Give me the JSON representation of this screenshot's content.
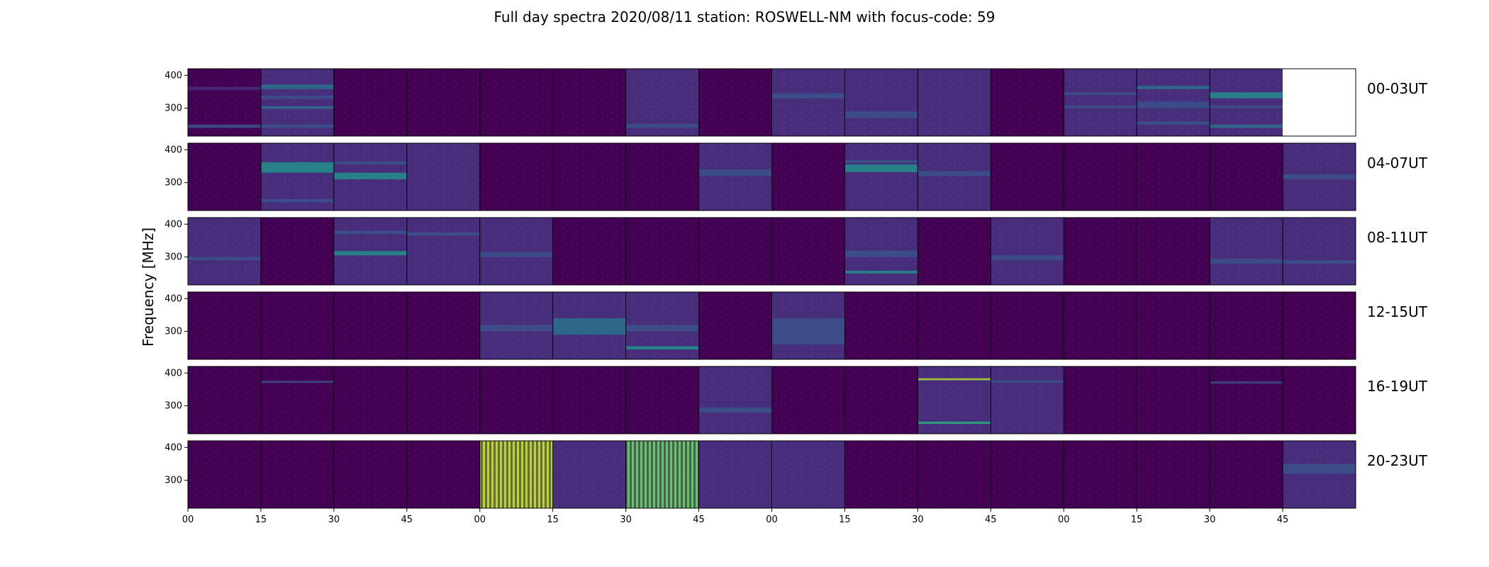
{
  "chart_data": {
    "type": "heatmap",
    "title": "Full day spectra 2020/08/11 station: ROSWELL-NM with focus-code: 59",
    "ylabel": "Frequency [MHz]",
    "yticks": [
      300,
      400
    ],
    "ylim": [
      215,
      420
    ],
    "xticks": [
      "00",
      "15",
      "30",
      "45",
      "00",
      "15",
      "30",
      "45",
      "00",
      "15",
      "30",
      "45",
      "00",
      "15",
      "30",
      "45"
    ],
    "panels_per_row": 16,
    "colormap": "viridis",
    "colors": [
      "#440154",
      "#472d7b",
      "#3b528b",
      "#2c728e",
      "#21918c",
      "#28ae80",
      "#5ec962",
      "#addc30",
      "#fde725"
    ],
    "rows": [
      {
        "label": "00-03UT",
        "panels": [
          {
            "level": 0.05,
            "bands": [
              {
                "f": [
                  240,
                  250
                ],
                "v": 0.25
              },
              {
                "f": [
                  355,
                  365
                ],
                "v": 0.15
              }
            ]
          },
          {
            "level": 0.1,
            "bands": [
              {
                "f": [
                  358,
                  372
                ],
                "v": 0.4
              },
              {
                "f": [
                  328,
                  338
                ],
                "v": 0.3
              },
              {
                "f": [
                  298,
                  306
                ],
                "v": 0.35
              },
              {
                "f": [
                  240,
                  250
                ],
                "v": 0.3
              }
            ]
          },
          {
            "level": 0.05,
            "bands": []
          },
          {
            "level": 0.05,
            "bands": []
          },
          {
            "level": 0.05,
            "bands": []
          },
          {
            "level": 0.05,
            "bands": []
          },
          {
            "level": 0.08,
            "bands": [
              {
                "f": [
                  240,
                  252
                ],
                "v": 0.3
              }
            ]
          },
          {
            "level": 0.05,
            "bands": []
          },
          {
            "level": 0.1,
            "bands": [
              {
                "f": [
                  330,
                  345
                ],
                "v": 0.2
              },
              {
                "f": [
                  290,
                  300
                ],
                "v": 0.15
              }
            ]
          },
          {
            "level": 0.12,
            "bands": [
              {
                "f": [
                  270,
                  290
                ],
                "v": 0.25
              }
            ]
          },
          {
            "level": 0.08,
            "bands": []
          },
          {
            "level": 0.05,
            "bands": []
          },
          {
            "level": 0.12,
            "bands": [
              {
                "f": [
                  340,
                  348
                ],
                "v": 0.25
              },
              {
                "f": [
                  300,
                  308
                ],
                "v": 0.2
              }
            ]
          },
          {
            "level": 0.15,
            "bands": [
              {
                "f": [
                  358,
                  368
                ],
                "v": 0.35
              },
              {
                "f": [
                  300,
                  320
                ],
                "v": 0.3
              },
              {
                "f": [
                  250,
                  260
                ],
                "v": 0.3
              }
            ]
          },
          {
            "level": 0.15,
            "bands": [
              {
                "f": [
                  330,
                  348
                ],
                "v": 0.45
              },
              {
                "f": [
                  300,
                  308
                ],
                "v": 0.3
              },
              {
                "f": [
                  240,
                  250
                ],
                "v": 0.4
              }
            ]
          },
          null
        ]
      },
      {
        "label": "04-07UT",
        "panels": [
          {
            "level": 0.05,
            "bands": []
          },
          {
            "level": 0.15,
            "bands": [
              {
                "f": [
                  330,
                  362
                ],
                "v": 0.45
              },
              {
                "f": [
                  240,
                  250
                ],
                "v": 0.3
              }
            ]
          },
          {
            "level": 0.15,
            "bands": [
              {
                "f": [
                  310,
                  330
                ],
                "v": 0.45
              },
              {
                "f": [
                  355,
                  365
                ],
                "v": 0.2
              }
            ]
          },
          {
            "level": 0.08,
            "bands": []
          },
          {
            "level": 0.05,
            "bands": []
          },
          {
            "level": 0.05,
            "bands": []
          },
          {
            "level": 0.05,
            "bands": []
          },
          {
            "level": 0.1,
            "bands": [
              {
                "f": [
                  320,
                  340
                ],
                "v": 0.2
              }
            ]
          },
          {
            "level": 0.05,
            "bands": []
          },
          {
            "level": 0.15,
            "bands": [
              {
                "f": [
                  332,
                  355
                ],
                "v": 0.55
              },
              {
                "f": [
                  360,
                  368
                ],
                "v": 0.3
              }
            ]
          },
          {
            "level": 0.08,
            "bands": [
              {
                "f": [
                  320,
                  335
                ],
                "v": 0.2
              }
            ]
          },
          {
            "level": 0.05,
            "bands": []
          },
          {
            "level": 0.05,
            "bands": []
          },
          {
            "level": 0.05,
            "bands": []
          },
          {
            "level": 0.05,
            "bands": []
          },
          {
            "level": 0.08,
            "bands": [
              {
                "f": [
                  310,
                  325
                ],
                "v": 0.2
              }
            ]
          }
        ]
      },
      {
        "label": "08-11UT",
        "panels": [
          {
            "level": 0.08,
            "bands": [
              {
                "f": [
                  290,
                  300
                ],
                "v": 0.2
              }
            ]
          },
          {
            "level": 0.05,
            "bands": []
          },
          {
            "level": 0.15,
            "bands": [
              {
                "f": [
                  305,
                  318
                ],
                "v": 0.45
              },
              {
                "f": [
                  370,
                  380
                ],
                "v": 0.2
              }
            ]
          },
          {
            "level": 0.1,
            "bands": [
              {
                "f": [
                  365,
                  375
                ],
                "v": 0.25
              }
            ]
          },
          {
            "level": 0.1,
            "bands": [
              {
                "f": [
                  300,
                  315
                ],
                "v": 0.25
              }
            ]
          },
          {
            "level": 0.05,
            "bands": []
          },
          {
            "level": 0.05,
            "bands": []
          },
          {
            "level": 0.05,
            "bands": []
          },
          {
            "level": 0.05,
            "bands": []
          },
          {
            "level": 0.12,
            "bands": [
              {
                "f": [
                  300,
                  320
                ],
                "v": 0.25
              },
              {
                "f": [
                  250,
                  258
                ],
                "v": 0.45
              }
            ]
          },
          {
            "level": 0.05,
            "bands": []
          },
          {
            "level": 0.08,
            "bands": [
              {
                "f": [
                  290,
                  305
                ],
                "v": 0.2
              }
            ]
          },
          {
            "level": 0.05,
            "bands": []
          },
          {
            "level": 0.05,
            "bands": []
          },
          {
            "level": 0.08,
            "bands": [
              {
                "f": [
                  280,
                  295
                ],
                "v": 0.2
              }
            ]
          },
          {
            "level": 0.08,
            "bands": [
              {
                "f": [
                  280,
                  290
                ],
                "v": 0.2
              }
            ]
          }
        ]
      },
      {
        "label": "12-15UT",
        "panels": [
          {
            "level": 0.05,
            "bands": []
          },
          {
            "level": 0.05,
            "bands": []
          },
          {
            "level": 0.05,
            "bands": []
          },
          {
            "level": 0.05,
            "bands": []
          },
          {
            "level": 0.08,
            "bands": [
              {
                "f": [
                  300,
                  320
                ],
                "v": 0.2
              }
            ]
          },
          {
            "level": 0.15,
            "bands": [
              {
                "f": [
                  290,
                  340
                ],
                "v": 0.4
              }
            ]
          },
          {
            "level": 0.12,
            "bands": [
              {
                "f": [
                  245,
                  255
                ],
                "v": 0.45
              },
              {
                "f": [
                  300,
                  320
                ],
                "v": 0.25
              }
            ]
          },
          {
            "level": 0.05,
            "bands": []
          },
          {
            "level": 0.12,
            "bands": [
              {
                "f": [
                  260,
                  340
                ],
                "v": 0.25
              }
            ]
          },
          {
            "level": 0.03,
            "bands": []
          },
          {
            "level": 0.05,
            "bands": []
          },
          {
            "level": 0.05,
            "bands": []
          },
          {
            "level": 0.05,
            "bands": []
          },
          {
            "level": 0.05,
            "bands": []
          },
          {
            "level": 0.05,
            "bands": []
          },
          {
            "level": 0.05,
            "bands": []
          }
        ]
      },
      {
        "label": "16-19UT",
        "panels": [
          {
            "level": 0.05,
            "bands": []
          },
          {
            "level": 0.05,
            "bands": [
              {
                "f": [
                  370,
                  376
                ],
                "v": 0.3
              }
            ]
          },
          {
            "level": 0.05,
            "bands": []
          },
          {
            "level": 0.05,
            "bands": []
          },
          {
            "level": 0.05,
            "bands": []
          },
          {
            "level": 0.05,
            "bands": []
          },
          {
            "level": 0.05,
            "bands": []
          },
          {
            "level": 0.08,
            "bands": [
              {
                "f": [
                  280,
                  295
                ],
                "v": 0.2
              }
            ]
          },
          {
            "level": 0.05,
            "bands": []
          },
          {
            "level": 0.05,
            "bands": []
          },
          {
            "level": 0.1,
            "bands": [
              {
                "f": [
                  378,
                  384
                ],
                "v": 0.9
              },
              {
                "f": [
                  245,
                  252
                ],
                "v": 0.6
              }
            ]
          },
          {
            "level": 0.08,
            "bands": [
              {
                "f": [
                  370,
                  378
                ],
                "v": 0.3
              }
            ]
          },
          {
            "level": 0.05,
            "bands": []
          },
          {
            "level": 0.05,
            "bands": []
          },
          {
            "level": 0.05,
            "bands": [
              {
                "f": [
                  368,
                  374
                ],
                "v": 0.3
              }
            ]
          },
          {
            "level": 0.05,
            "bands": []
          }
        ]
      },
      {
        "label": "20-23UT",
        "panels": [
          {
            "level": 0.05,
            "bands": []
          },
          {
            "level": 0.05,
            "bands": []
          },
          {
            "level": 0.05,
            "bands": []
          },
          {
            "level": 0.05,
            "bands": []
          },
          {
            "level": 0.85,
            "bands": []
          },
          {
            "level": 0.1,
            "bands": []
          },
          {
            "level": 0.75,
            "bands": []
          },
          {
            "level": 0.08,
            "bands": []
          },
          {
            "level": 0.12,
            "bands": []
          },
          {
            "level": 0.03,
            "bands": []
          },
          {
            "level": 0.05,
            "bands": []
          },
          {
            "level": 0.05,
            "bands": []
          },
          {
            "level": 0.05,
            "bands": []
          },
          {
            "level": 0.05,
            "bands": []
          },
          {
            "level": 0.05,
            "bands": []
          },
          {
            "level": 0.1,
            "bands": [
              {
                "f": [
                  320,
                  350
                ],
                "v": 0.2
              }
            ]
          }
        ]
      }
    ]
  }
}
